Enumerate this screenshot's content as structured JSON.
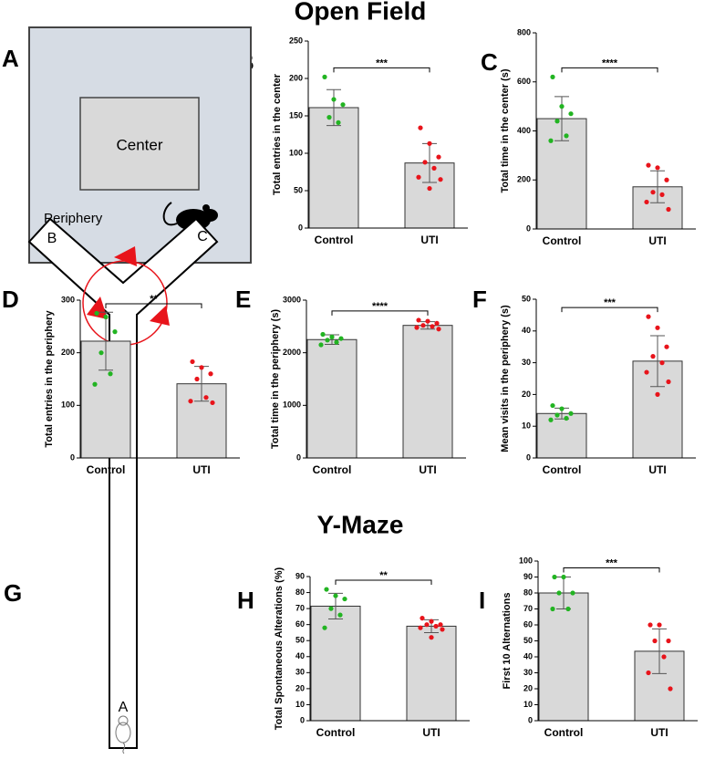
{
  "titles": [
    "Open Field",
    "Y-Maze"
  ],
  "panel_letters": [
    "A",
    "B",
    "C",
    "D",
    "E",
    "F",
    "G",
    "H",
    "I"
  ],
  "open_field_diagram": {
    "center": "Center",
    "periphery": "Periphery"
  },
  "ymaze_diagram": {
    "arms": [
      "A",
      "B",
      "C"
    ]
  },
  "chart_data": [
    {
      "type": "bar",
      "ylabel": "Total entries in the center",
      "categories": [
        "Control",
        "UTI"
      ],
      "values": [
        161,
        87
      ],
      "errors": [
        24,
        26
      ],
      "points": [
        [
          202,
          172,
          165,
          148,
          141
        ],
        [
          134,
          113,
          95,
          88,
          80,
          68,
          65,
          53
        ]
      ],
      "significance": "***",
      "ylim": [
        0,
        250
      ],
      "yticks": [
        0,
        50,
        100,
        150,
        200,
        250
      ],
      "bar_color": "#d9d9d9",
      "point_colors": [
        "#22b422",
        "#e8141b"
      ]
    },
    {
      "type": "bar",
      "ylabel": "Total time in the center (s)",
      "categories": [
        "Control",
        "UTI"
      ],
      "values": [
        450,
        172
      ],
      "errors": [
        90,
        65
      ],
      "points": [
        [
          620,
          500,
          470,
          440,
          380,
          360
        ],
        [
          260,
          250,
          200,
          150,
          140,
          110,
          80
        ]
      ],
      "significance": "****",
      "ylim": [
        0,
        800
      ],
      "yticks": [
        0,
        200,
        400,
        600,
        800
      ],
      "bar_color": "#d9d9d9",
      "point_colors": [
        "#22b422",
        "#e8141b"
      ]
    },
    {
      "type": "bar",
      "ylabel": "Total entries in the periphery",
      "categories": [
        "Control",
        "UTI"
      ],
      "values": [
        222,
        141
      ],
      "errors": [
        55,
        33
      ],
      "points": [
        [
          275,
          268,
          240,
          200,
          160,
          140
        ],
        [
          183,
          172,
          160,
          150,
          115,
          108,
          105
        ]
      ],
      "significance": "**",
      "ylim": [
        0,
        300
      ],
      "yticks": [
        0,
        100,
        200,
        300
      ],
      "bar_color": "#d9d9d9",
      "point_colors": [
        "#22b422",
        "#e8141b"
      ]
    },
    {
      "type": "bar",
      "ylabel": "Total time in the periphery (s)",
      "categories": [
        "Control",
        "UTI"
      ],
      "values": [
        2250,
        2520
      ],
      "errors": [
        90,
        70
      ],
      "points": [
        [
          2350,
          2300,
          2270,
          2240,
          2200,
          2150
        ],
        [
          2620,
          2600,
          2560,
          2520,
          2500,
          2480,
          2450
        ]
      ],
      "significance": "****",
      "ylim": [
        0,
        3000
      ],
      "yticks": [
        0,
        1000,
        2000,
        3000
      ],
      "bar_color": "#d9d9d9",
      "point_colors": [
        "#22b422",
        "#e8141b"
      ]
    },
    {
      "type": "bar",
      "ylabel": "Mean visits in the periphery (s)",
      "categories": [
        "Control",
        "UTI"
      ],
      "values": [
        14,
        30.5
      ],
      "errors": [
        1.7,
        8
      ],
      "points": [
        [
          16.5,
          15.5,
          14,
          13.5,
          12.5,
          12
        ],
        [
          44.5,
          41,
          35,
          32,
          30,
          27,
          24,
          20
        ]
      ],
      "significance": "***",
      "ylim": [
        0,
        50
      ],
      "yticks": [
        0,
        10,
        20,
        30,
        40,
        50
      ],
      "bar_color": "#d9d9d9",
      "point_colors": [
        "#22b422",
        "#e8141b"
      ]
    },
    {
      "type": "bar",
      "ylabel": "Total Spontaneous Alterations (%)",
      "categories": [
        "Control",
        "UTI"
      ],
      "values": [
        71.5,
        59
      ],
      "errors": [
        8,
        4
      ],
      "points": [
        [
          82,
          78,
          76,
          70,
          66,
          58
        ],
        [
          64,
          62,
          60,
          60,
          59,
          58,
          57,
          52
        ]
      ],
      "significance": "**",
      "ylim": [
        0,
        90
      ],
      "yticks": [
        0,
        10,
        20,
        30,
        40,
        50,
        60,
        70,
        80,
        90
      ],
      "bar_color": "#d9d9d9",
      "point_colors": [
        "#22b422",
        "#e8141b"
      ]
    },
    {
      "type": "bar",
      "ylabel": "First 10 Alternations",
      "categories": [
        "Control",
        "UTI"
      ],
      "values": [
        80,
        43.5
      ],
      "errors": [
        10,
        14
      ],
      "points": [
        [
          90,
          90,
          80,
          80,
          70,
          70
        ],
        [
          60,
          60,
          50,
          50,
          40,
          30,
          20
        ]
      ],
      "significance": "***",
      "ylim": [
        0,
        100
      ],
      "yticks": [
        0,
        10,
        20,
        30,
        40,
        50,
        60,
        70,
        80,
        90,
        100
      ],
      "bar_color": "#d9d9d9",
      "point_colors": [
        "#22b422",
        "#e8141b"
      ]
    }
  ]
}
